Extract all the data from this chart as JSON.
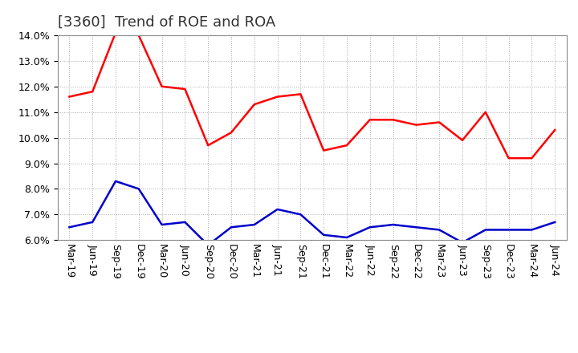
{
  "title": "[3360]  Trend of ROE and ROA",
  "labels": [
    "Mar-19",
    "Jun-19",
    "Sep-19",
    "Dec-19",
    "Mar-20",
    "Jun-20",
    "Sep-20",
    "Dec-20",
    "Mar-21",
    "Jun-21",
    "Sep-21",
    "Dec-21",
    "Mar-22",
    "Jun-22",
    "Sep-22",
    "Dec-22",
    "Mar-23",
    "Jun-23",
    "Sep-23",
    "Dec-23",
    "Mar-24",
    "Jun-24"
  ],
  "ROE": [
    11.6,
    11.8,
    14.1,
    14.0,
    12.0,
    11.9,
    9.7,
    10.2,
    11.3,
    11.6,
    11.7,
    9.5,
    9.7,
    10.7,
    10.7,
    10.5,
    10.6,
    9.9,
    11.0,
    9.2,
    9.2,
    10.3
  ],
  "ROA": [
    6.5,
    6.7,
    8.3,
    8.0,
    6.6,
    6.7,
    5.8,
    6.5,
    6.6,
    7.2,
    7.0,
    6.2,
    6.1,
    6.5,
    6.6,
    6.5,
    6.4,
    5.9,
    6.4,
    6.4,
    6.4,
    6.7
  ],
  "roe_color": "#ff0000",
  "roa_color": "#0000cc",
  "ylim_min": 6.0,
  "ylim_max": 14.0,
  "bg_color": "#ffffff",
  "plot_bg_color": "#ffffff",
  "grid_color": "#aaaaaa",
  "line_width": 1.8,
  "title_fontsize": 13,
  "tick_fontsize": 9,
  "legend_fontsize": 10
}
